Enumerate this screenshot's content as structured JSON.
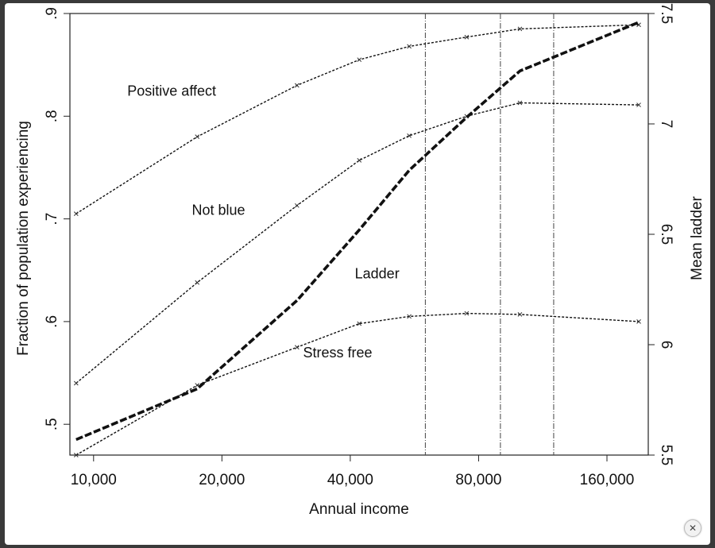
{
  "close_button": {
    "glyph": "✕",
    "icon": "close-icon"
  },
  "chart_data": {
    "type": "line",
    "xlabel": "Annual income",
    "ylabel_left": "Fraction of population experiencing",
    "ylabel_right": "Mean ladder",
    "x_scale": "log",
    "xlim": [
      8800,
      200000
    ],
    "x_ticks": [
      {
        "value": 10000,
        "label": "10,000"
      },
      {
        "value": 20000,
        "label": "20,000"
      },
      {
        "value": 40000,
        "label": "40,000"
      },
      {
        "value": 80000,
        "label": "80,000"
      },
      {
        "value": 160000,
        "label": "160,000"
      }
    ],
    "ylim_left": [
      0.47,
      0.9
    ],
    "y_ticks_left": [
      {
        "value": 0.5,
        "label": ".5"
      },
      {
        "value": 0.6,
        "label": ".6"
      },
      {
        "value": 0.7,
        "label": ".7"
      },
      {
        "value": 0.8,
        "label": ".8"
      },
      {
        "value": 0.9,
        "label": ".9"
      }
    ],
    "ylim_right": [
      5.5,
      7.5
    ],
    "y_ticks_right": [
      {
        "value": 5.5,
        "label": "5.5"
      },
      {
        "value": 6,
        "label": "6"
      },
      {
        "value": 6.5,
        "label": "6.5"
      },
      {
        "value": 7,
        "label": "7"
      },
      {
        "value": 7.5,
        "label": "7.5"
      }
    ],
    "vertical_lines": [
      60000,
      90000,
      120000
    ],
    "grid": false,
    "series": [
      {
        "name": "Positive affect",
        "axis": "left",
        "label_at": {
          "x": 12000,
          "y": 0.82
        },
        "points": [
          [
            9100,
            0.705
          ],
          [
            17500,
            0.78
          ],
          [
            30000,
            0.83
          ],
          [
            42000,
            0.855
          ],
          [
            55000,
            0.868
          ],
          [
            75000,
            0.877
          ],
          [
            100000,
            0.885
          ],
          [
            190000,
            0.889
          ]
        ]
      },
      {
        "name": "Not blue",
        "axis": "left",
        "label_at": {
          "x": 17000,
          "y": 0.704
        },
        "points": [
          [
            9100,
            0.54
          ],
          [
            17500,
            0.638
          ],
          [
            30000,
            0.713
          ],
          [
            42000,
            0.757
          ],
          [
            55000,
            0.781
          ],
          [
            75000,
            0.8
          ],
          [
            100000,
            0.813
          ],
          [
            190000,
            0.811
          ]
        ]
      },
      {
        "name": "Ladder",
        "axis": "right",
        "style": "thick",
        "label_at": {
          "x": 41000,
          "y": 6.3
        },
        "points": [
          [
            9100,
            5.57
          ],
          [
            17500,
            5.8
          ],
          [
            30000,
            6.2
          ],
          [
            42000,
            6.52
          ],
          [
            55000,
            6.79
          ],
          [
            75000,
            7.03
          ],
          [
            100000,
            7.24
          ],
          [
            190000,
            7.46
          ]
        ]
      },
      {
        "name": "Stress free",
        "axis": "left",
        "label_at": {
          "x": 31000,
          "y": 0.565
        },
        "points": [
          [
            9100,
            0.47
          ],
          [
            17500,
            0.538
          ],
          [
            30000,
            0.575
          ],
          [
            42000,
            0.598
          ],
          [
            55000,
            0.605
          ],
          [
            75000,
            0.608
          ],
          [
            100000,
            0.607
          ],
          [
            190000,
            0.6
          ]
        ]
      }
    ]
  }
}
